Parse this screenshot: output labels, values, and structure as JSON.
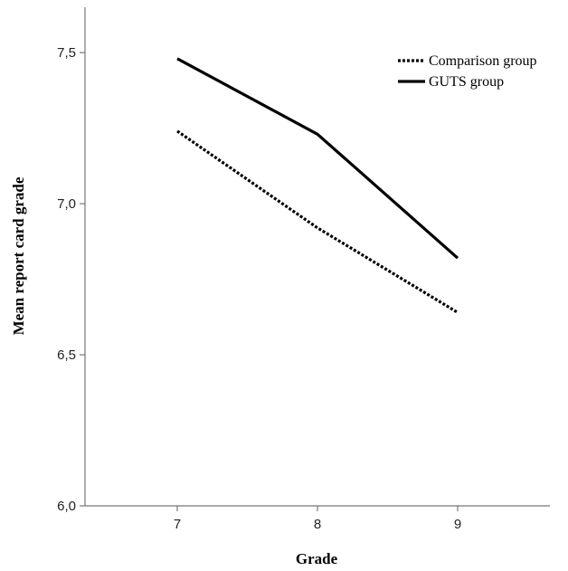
{
  "chart_data": {
    "type": "line",
    "title": "",
    "xlabel": "Grade",
    "ylabel": "Mean report card grade",
    "categories": [
      "7",
      "8",
      "9"
    ],
    "ylim": [
      6.0,
      7.65
    ],
    "yticks": [
      "6,0",
      "6,5",
      "7,0",
      "7,5"
    ],
    "ytick_values": [
      6.0,
      6.5,
      7.0,
      7.5
    ],
    "grid": false,
    "legend_position": "top-right",
    "series": [
      {
        "name": "Comparison group",
        "values": [
          7.24,
          6.92,
          6.64
        ],
        "style": "dotted",
        "color": "#000000"
      },
      {
        "name": "GUTS group",
        "values": [
          7.48,
          7.23,
          6.82
        ],
        "style": "solid",
        "color": "#000000"
      }
    ]
  }
}
